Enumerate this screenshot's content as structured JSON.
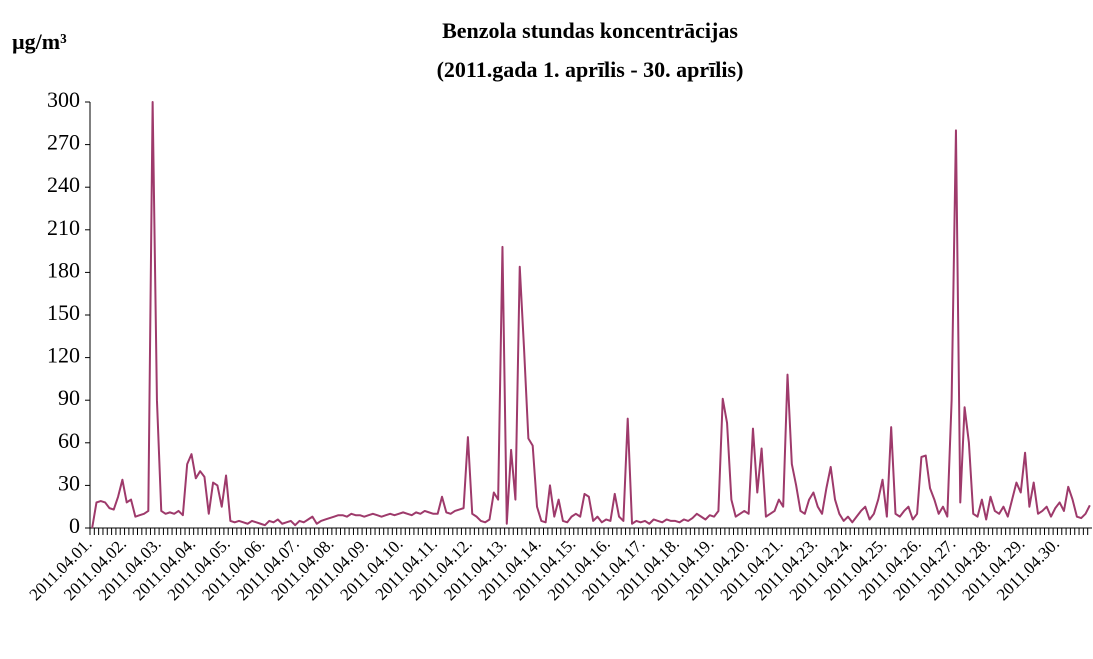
{
  "chart_data": {
    "type": "line",
    "title": "Benzola stundas koncentrācijas",
    "subtitle": "(2011.gada 1. aprīlis - 30. aprīlis)",
    "y_label": "µg/m³",
    "color": "#9e3a6b",
    "categories": [
      "2011.04.01.",
      null,
      null,
      null,
      null,
      null,
      null,
      null,
      "2011.04.02.",
      null,
      null,
      null,
      null,
      null,
      null,
      null,
      "2011.04.03.",
      null,
      null,
      null,
      null,
      null,
      null,
      null,
      "2011.04.04.",
      null,
      null,
      null,
      null,
      null,
      null,
      null,
      "2011.04.05.",
      null,
      null,
      null,
      null,
      null,
      null,
      null,
      "2011.04.06.",
      null,
      null,
      null,
      null,
      null,
      null,
      null,
      "2011.04.07.",
      null,
      null,
      null,
      null,
      null,
      null,
      null,
      "2011.04.08.",
      null,
      null,
      null,
      null,
      null,
      null,
      null,
      "2011.04.09.",
      null,
      null,
      null,
      null,
      null,
      null,
      null,
      "2011.04.10.",
      null,
      null,
      null,
      null,
      null,
      null,
      null,
      "2011.04.11.",
      null,
      null,
      null,
      null,
      null,
      null,
      null,
      "2011.04.12.",
      null,
      null,
      null,
      null,
      null,
      null,
      null,
      "2011.04.13.",
      null,
      null,
      null,
      null,
      null,
      null,
      null,
      "2011.04.14.",
      null,
      null,
      null,
      null,
      null,
      null,
      null,
      "2011.04.15.",
      null,
      null,
      null,
      null,
      null,
      null,
      null,
      "2011.04.16.",
      null,
      null,
      null,
      null,
      null,
      null,
      null,
      "2011.04.17.",
      null,
      null,
      null,
      null,
      null,
      null,
      null,
      "2011.04.18.",
      null,
      null,
      null,
      null,
      null,
      null,
      null,
      "2011.04.19.",
      null,
      null,
      null,
      null,
      null,
      null,
      null,
      "2011.04.20.",
      null,
      null,
      null,
      null,
      null,
      null,
      null,
      "2011.04.21.",
      null,
      null,
      null,
      null,
      null,
      null,
      null,
      "2011.04.23.",
      null,
      null,
      null,
      null,
      null,
      null,
      null,
      "2011.04.24.",
      null,
      null,
      null,
      null,
      null,
      null,
      null,
      "2011.04.25.",
      null,
      null,
      null,
      null,
      null,
      null,
      null,
      "2011.04.26.",
      null,
      null,
      null,
      null,
      null,
      null,
      null,
      "2011.04.27.",
      null,
      null,
      null,
      null,
      null,
      null,
      null,
      "2011.04.28.",
      null,
      null,
      null,
      null,
      null,
      null,
      null,
      "2011.04.29.",
      null,
      null,
      null,
      null,
      null,
      null,
      null,
      "2011.04.30.",
      null,
      null,
      null,
      null,
      null,
      null,
      null
    ],
    "values": [
      0,
      18,
      19,
      18,
      14,
      13,
      22,
      34,
      18,
      20,
      8,
      9,
      10,
      12,
      300,
      90,
      12,
      10,
      11,
      10,
      12,
      9,
      45,
      52,
      35,
      40,
      36,
      10,
      32,
      30,
      15,
      37,
      5,
      4,
      5,
      4,
      3,
      5,
      4,
      3,
      2,
      5,
      4,
      6,
      3,
      4,
      5,
      2,
      5,
      4,
      6,
      8,
      3,
      5,
      6,
      7,
      8,
      9,
      9,
      8,
      10,
      9,
      9,
      8,
      9,
      10,
      9,
      8,
      9,
      10,
      9,
      10,
      11,
      10,
      9,
      11,
      10,
      12,
      11,
      10,
      10,
      22,
      11,
      10,
      12,
      13,
      14,
      64,
      10,
      8,
      5,
      4,
      6,
      25,
      20,
      198,
      3,
      55,
      20,
      184,
      126,
      63,
      58,
      15,
      5,
      4,
      30,
      8,
      20,
      5,
      4,
      8,
      10,
      8,
      24,
      22,
      5,
      8,
      4,
      6,
      5,
      24,
      8,
      5,
      77,
      3,
      5,
      4,
      5,
      3,
      6,
      5,
      4,
      6,
      5,
      5,
      4,
      6,
      5,
      7,
      10,
      8,
      6,
      9,
      8,
      12,
      91,
      74,
      20,
      8,
      10,
      12,
      10,
      70,
      25,
      56,
      8,
      10,
      12,
      20,
      15,
      108,
      45,
      30,
      12,
      10,
      20,
      25,
      15,
      10,
      28,
      43,
      20,
      10,
      5,
      8,
      4,
      8,
      12,
      15,
      6,
      10,
      20,
      34,
      8,
      71,
      10,
      8,
      12,
      15,
      6,
      10,
      50,
      51,
      28,
      20,
      10,
      15,
      8,
      90,
      280,
      18,
      85,
      60,
      10,
      8,
      20,
      6,
      22,
      12,
      10,
      15,
      8,
      20,
      32,
      25,
      53,
      15,
      32,
      10,
      12,
      15,
      8,
      14,
      18,
      12,
      29,
      20,
      8,
      7,
      10,
      16
    ],
    "ylim": [
      0,
      300
    ],
    "yticks": [
      0,
      30,
      60,
      90,
      120,
      150,
      180,
      210,
      240,
      270,
      300
    ],
    "grid": false
  }
}
